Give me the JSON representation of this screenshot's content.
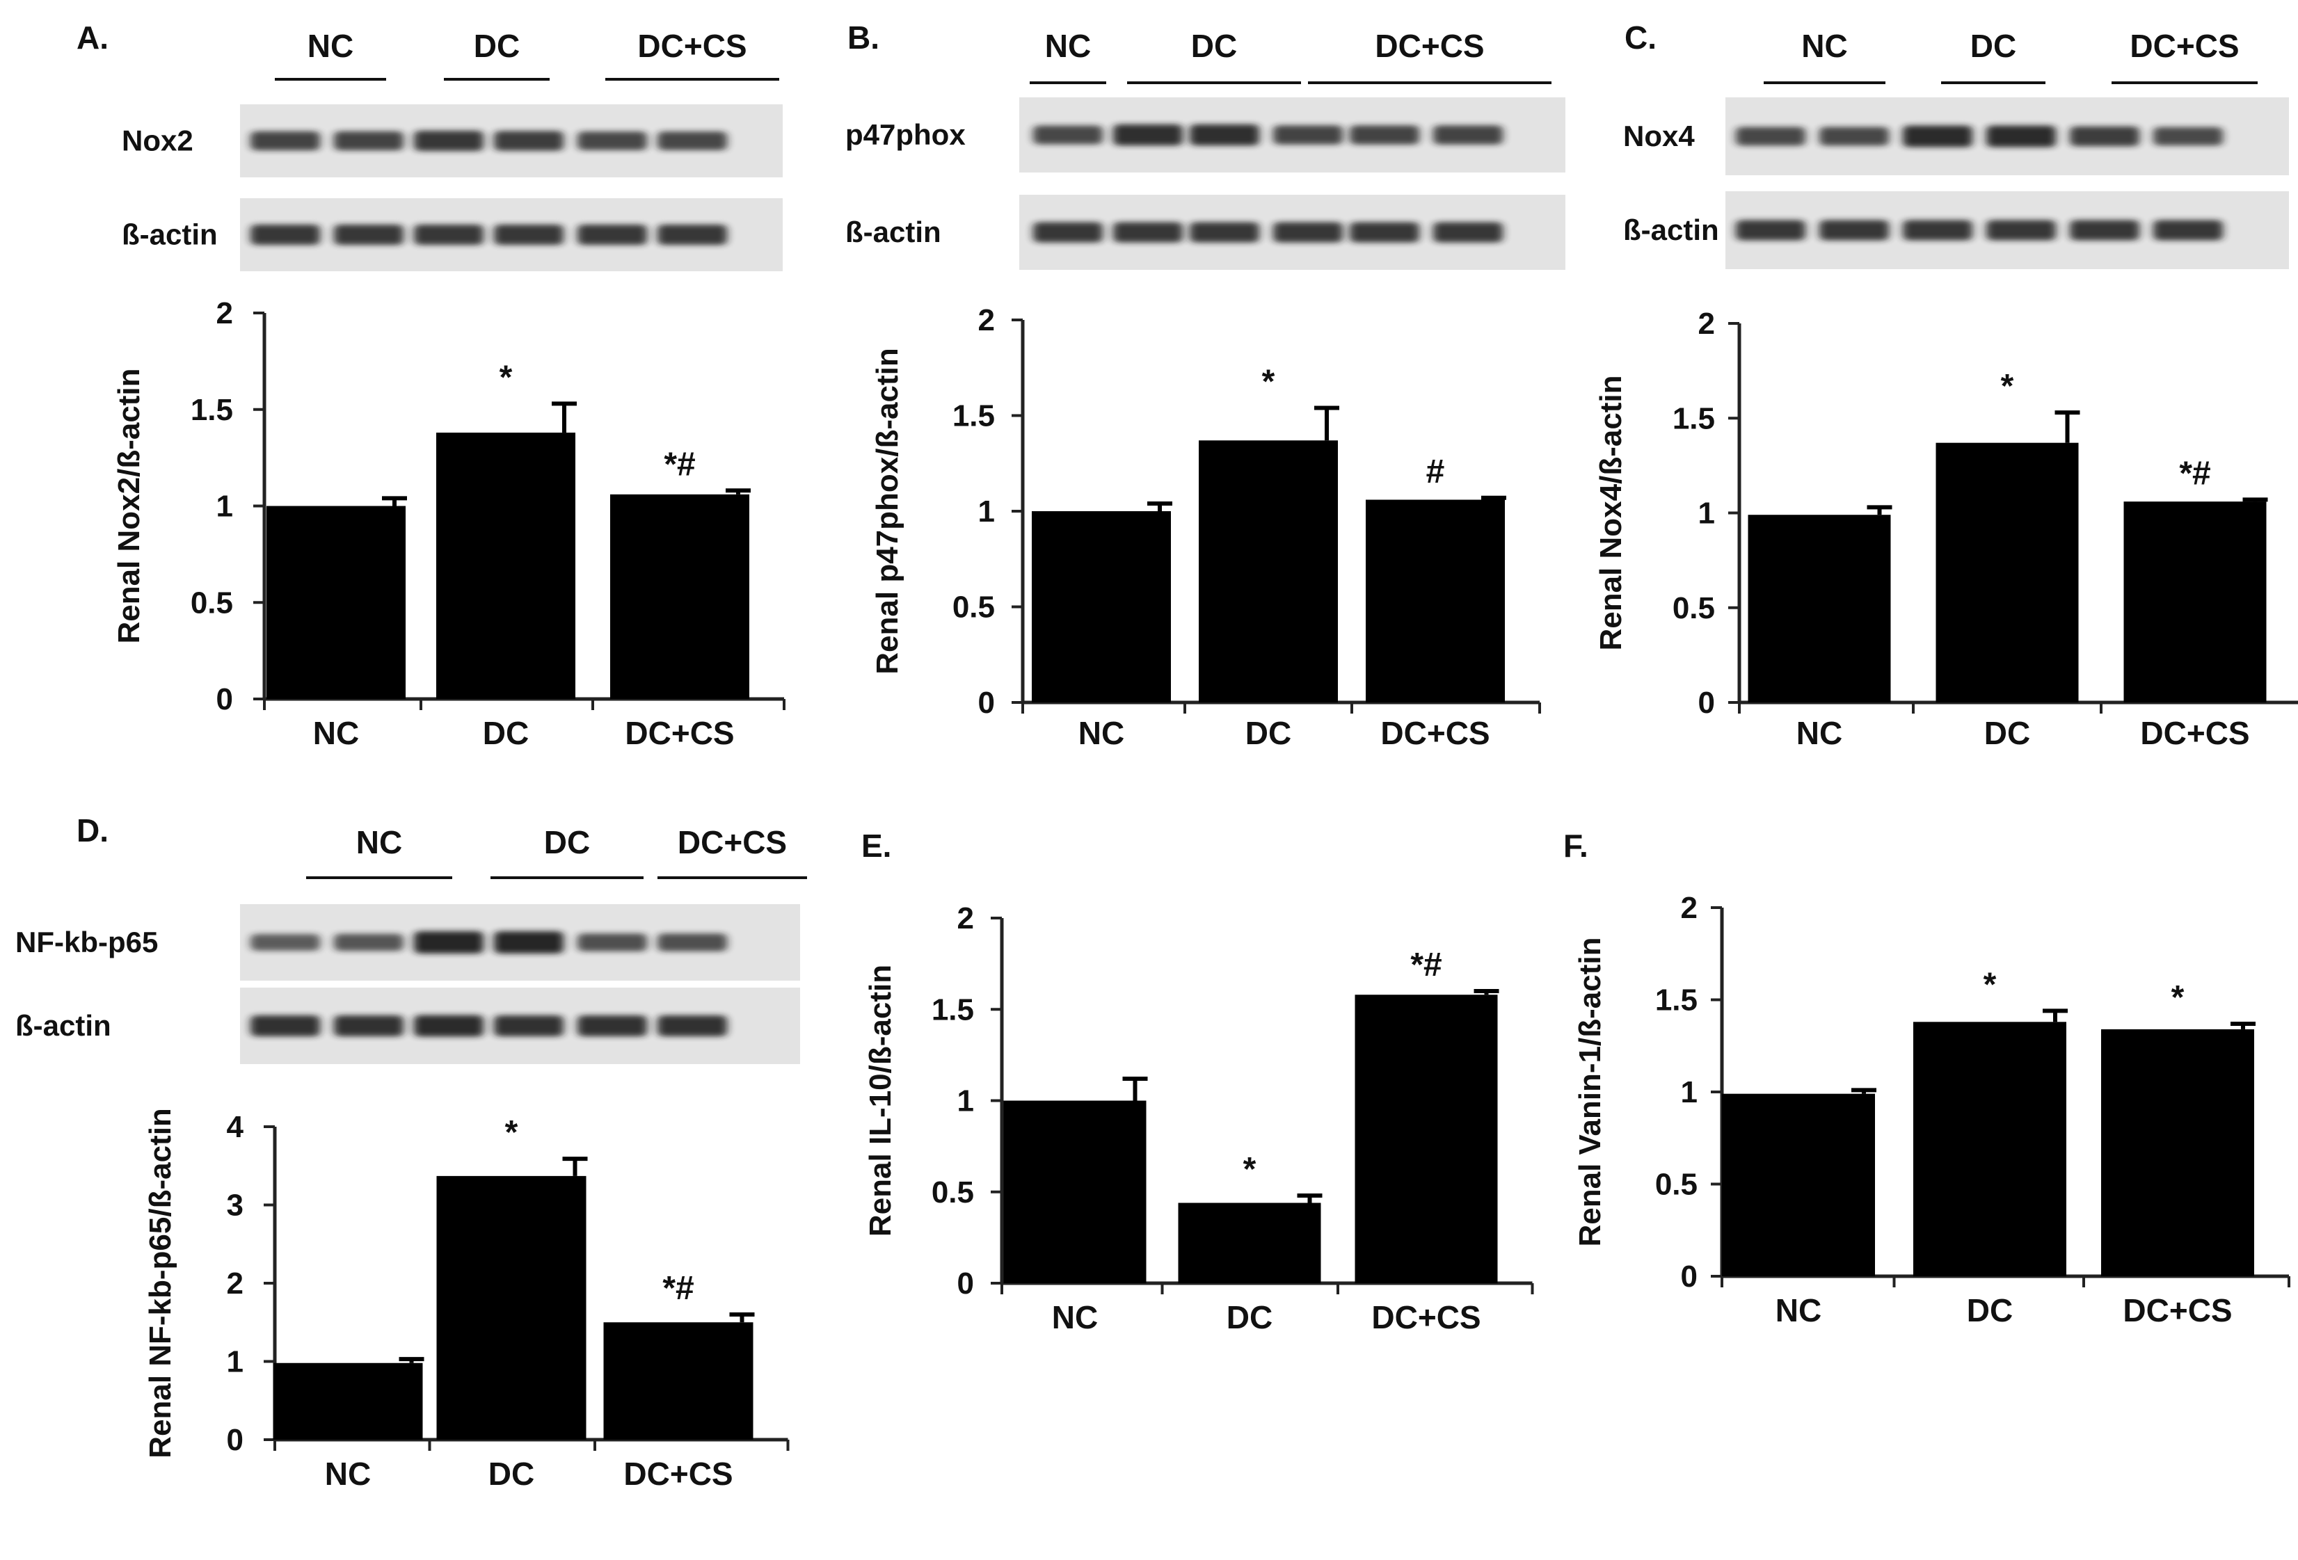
{
  "figure": {
    "colors": {
      "bar": "#000000",
      "axis": "#222222",
      "blot_background": "#e3e3e3",
      "band_dark": "#1b1b1b"
    }
  },
  "panels": [
    {
      "letter": "A.",
      "blot": {
        "groups": [
          "NC",
          "DC",
          "DC+CS"
        ],
        "rows": [
          {
            "label": "Nox2",
            "intensity": [
              0.75,
              0.75,
              0.85,
              0.8,
              0.72,
              0.72
            ]
          },
          {
            "label": "ß-actin",
            "intensity": [
              0.85,
              0.85,
              0.85,
              0.85,
              0.85,
              0.85
            ]
          }
        ]
      },
      "chart_data": {
        "type": "bar",
        "categories": [
          "NC",
          "DC",
          "DC+CS"
        ],
        "values": [
          1.0,
          1.38,
          1.06
        ],
        "errors": [
          0.04,
          0.15,
          0.02
        ],
        "annotations": [
          "",
          "*",
          "*#"
        ],
        "ylabel": "Renal Nox2/ß-actin",
        "ylim": [
          0,
          2
        ],
        "yticks": [
          0,
          0.5,
          1,
          1.5,
          2
        ],
        "ytick_labels": [
          "0",
          "0.5",
          "1",
          "1.5",
          "2"
        ]
      }
    },
    {
      "letter": "B.",
      "blot": {
        "groups": [
          "NC",
          "DC",
          "DC+CS"
        ],
        "rows": [
          {
            "label": "p47phox",
            "intensity": [
              0.72,
              0.92,
              0.92,
              0.75,
              0.75,
              0.75
            ]
          },
          {
            "label": "ß-actin",
            "intensity": [
              0.85,
              0.85,
              0.85,
              0.85,
              0.85,
              0.85
            ]
          }
        ]
      },
      "chart_data": {
        "type": "bar",
        "categories": [
          "NC",
          "DC",
          "DC+CS"
        ],
        "values": [
          1.0,
          1.37,
          1.06
        ],
        "errors": [
          0.04,
          0.17,
          0.01
        ],
        "annotations": [
          "",
          "*",
          "#"
        ],
        "ylabel": "Renal p47phox/ß-actin",
        "ylim": [
          0,
          2
        ],
        "yticks": [
          0,
          0.5,
          1,
          1.5,
          2
        ],
        "ytick_labels": [
          "0",
          "0.5",
          "1",
          "1.5",
          "2"
        ]
      }
    },
    {
      "letter": "C.",
      "blot": {
        "groups": [
          "NC",
          "DC",
          "DC+CS"
        ],
        "rows": [
          {
            "label": "Nox4",
            "intensity": [
              0.72,
              0.72,
              0.95,
              0.95,
              0.8,
              0.7
            ]
          },
          {
            "label": "ß-actin",
            "intensity": [
              0.85,
              0.85,
              0.85,
              0.85,
              0.85,
              0.85
            ]
          }
        ]
      },
      "chart_data": {
        "type": "bar",
        "categories": [
          "NC",
          "DC",
          "DC+CS"
        ],
        "values": [
          0.99,
          1.37,
          1.06
        ],
        "errors": [
          0.04,
          0.16,
          0.01
        ],
        "annotations": [
          "",
          "*",
          "*#"
        ],
        "ylabel": "Renal Nox4/ß-actin",
        "ylim": [
          0,
          2
        ],
        "yticks": [
          0,
          0.5,
          1,
          1.5,
          2
        ],
        "ytick_labels": [
          "0",
          "0.5",
          "1",
          "1.5",
          "2"
        ]
      }
    },
    {
      "letter": "D.",
      "blot": {
        "groups": [
          "NC",
          "DC",
          "DC+CS"
        ],
        "rows": [
          {
            "label": "NF-kb-p65",
            "intensity": [
              0.55,
              0.6,
              1.0,
              1.0,
              0.65,
              0.65
            ]
          },
          {
            "label": "ß-actin",
            "intensity": [
              0.9,
              0.9,
              0.95,
              0.9,
              0.9,
              0.9
            ]
          }
        ]
      },
      "chart_data": {
        "type": "bar",
        "categories": [
          "NC",
          "DC",
          "DC+CS"
        ],
        "values": [
          0.98,
          3.37,
          1.5
        ],
        "errors": [
          0.05,
          0.22,
          0.1
        ],
        "annotations": [
          "",
          "*",
          "*#"
        ],
        "ylabel": "Renal NF-kb-p65/ß-actin",
        "ylim": [
          0,
          4
        ],
        "yticks": [
          0,
          1,
          2,
          3,
          4
        ],
        "ytick_labels": [
          "0",
          "1",
          "2",
          "3",
          "4"
        ]
      }
    },
    {
      "letter": "E.",
      "chart_data": {
        "type": "bar",
        "categories": [
          "NC",
          "DC",
          "DC+CS"
        ],
        "values": [
          1.0,
          0.44,
          1.58
        ],
        "errors": [
          0.12,
          0.04,
          0.02
        ],
        "annotations": [
          "",
          "*",
          "*#"
        ],
        "ylabel": "Renal IL-10/ß-actin",
        "ylim": [
          0,
          2
        ],
        "yticks": [
          0,
          0.5,
          1,
          1.5,
          2
        ],
        "ytick_labels": [
          "0",
          "0.5",
          "1",
          "1.5",
          "2"
        ]
      }
    },
    {
      "letter": "F.",
      "chart_data": {
        "type": "bar",
        "categories": [
          "NC",
          "DC",
          "DC+CS"
        ],
        "values": [
          0.99,
          1.38,
          1.34
        ],
        "errors": [
          0.02,
          0.06,
          0.03
        ],
        "annotations": [
          "",
          "*",
          "*"
        ],
        "ylabel": "Renal Vanin-1/ß-actin",
        "ylim": [
          0,
          2
        ],
        "yticks": [
          0,
          0.5,
          1,
          1.5,
          2
        ],
        "ytick_labels": [
          "0",
          "0.5",
          "1",
          "1.5",
          "2"
        ]
      }
    }
  ]
}
